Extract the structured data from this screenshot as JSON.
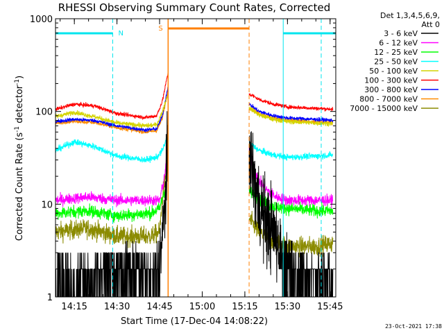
{
  "chart_data": {
    "type": "line",
    "title": "RHESSI Observing Summary Count Rates, Corrected",
    "xlabel": "Start Time (17-Dec-04 14:08:22)",
    "ylabel": "Corrected Count Rate (s",
    "ylabel_sup": "-1",
    "ylabel_tail": " detector",
    "ylabel_sup2": "-1",
    "ylabel_end": ")",
    "y_scale": "log",
    "ylim": [
      1,
      1000
    ],
    "xlim": [
      "14:08:22",
      "15:47:00"
    ],
    "x_ticks": [
      "14:15",
      "14:30",
      "14:45",
      "15:00",
      "15:15",
      "15:30",
      "15:45"
    ],
    "y_ticks": [
      "1",
      "10",
      "100",
      "1000"
    ],
    "legend_header": [
      "Det 1,3,4,5,6,9,",
      "Att 0"
    ],
    "legend_position": "right",
    "flag_labels": {
      "night": "N",
      "saa": "S"
    },
    "flags": {
      "night": [
        [
          "14:08:22",
          "14:28:30"
        ],
        [
          "15:28:30",
          "15:47:00"
        ]
      ],
      "saa": [
        [
          "14:48:00",
          "15:16:30"
        ]
      ]
    },
    "gap": [
      "14:48:00",
      "15:16:30"
    ],
    "series": [
      {
        "name": "3 - 6 keV",
        "color": "#000000",
        "noise": 0.55,
        "points": [
          [
            "14:08:22",
            1.3
          ],
          [
            "14:20",
            1.6
          ],
          [
            "14:35",
            1.8
          ],
          [
            "14:42",
            1.6
          ],
          [
            "14:44",
            1.8
          ],
          [
            "14:46",
            4
          ],
          [
            "14:47:50",
            30
          ],
          [
            "15:16:30",
            42
          ],
          [
            "15:18",
            20
          ],
          [
            "15:20",
            10
          ],
          [
            "15:22",
            7
          ],
          [
            "15:25",
            5
          ],
          [
            "15:28",
            3
          ],
          [
            "15:32",
            1.8
          ],
          [
            "15:40",
            1.5
          ],
          [
            "15:46",
            1.5
          ]
        ]
      },
      {
        "name": "6 - 12 keV",
        "color": "#ff00ff",
        "noise": 0.07,
        "points": [
          [
            "14:08:22",
            11
          ],
          [
            "14:20",
            12
          ],
          [
            "14:30",
            11
          ],
          [
            "14:42",
            11
          ],
          [
            "14:45",
            11
          ],
          [
            "14:46:30",
            18
          ],
          [
            "14:47:50",
            38
          ],
          [
            "15:16:30",
            40
          ],
          [
            "15:18",
            25
          ],
          [
            "15:20",
            18
          ],
          [
            "15:23",
            14
          ],
          [
            "15:26",
            12
          ],
          [
            "15:30",
            11
          ],
          [
            "15:40",
            11
          ],
          [
            "15:46",
            11
          ]
        ]
      },
      {
        "name": "12 - 25 keV",
        "color": "#00ff00",
        "noise": 0.08,
        "points": [
          [
            "14:08:22",
            8
          ],
          [
            "14:20",
            8.5
          ],
          [
            "14:30",
            7.5
          ],
          [
            "14:42",
            8
          ],
          [
            "14:45",
            9
          ],
          [
            "14:47",
            15
          ],
          [
            "14:47:50",
            25
          ],
          [
            "15:16:30",
            14
          ],
          [
            "15:20",
            11
          ],
          [
            "15:25",
            9.5
          ],
          [
            "15:30",
            9
          ],
          [
            "15:40",
            8.5
          ],
          [
            "15:46",
            8.5
          ]
        ]
      },
      {
        "name": "25 - 50 keV",
        "color": "#00ffff",
        "noise": 0.04,
        "points": [
          [
            "14:08:22",
            38
          ],
          [
            "14:15",
            47
          ],
          [
            "14:22",
            42
          ],
          [
            "14:30",
            33
          ],
          [
            "14:40",
            30
          ],
          [
            "14:44",
            32
          ],
          [
            "14:46",
            38
          ],
          [
            "14:47:50",
            55
          ],
          [
            "15:16:30",
            46
          ],
          [
            "15:20",
            38
          ],
          [
            "15:25",
            34
          ],
          [
            "15:30",
            32
          ],
          [
            "15:40",
            33
          ],
          [
            "15:46",
            34
          ]
        ]
      },
      {
        "name": "50 - 100 keV",
        "color": "#d4d400",
        "noise": 0.03,
        "points": [
          [
            "14:08:22",
            88
          ],
          [
            "14:15",
            98
          ],
          [
            "14:22",
            88
          ],
          [
            "14:30",
            75
          ],
          [
            "14:40",
            70
          ],
          [
            "14:44",
            72
          ],
          [
            "14:46",
            100
          ],
          [
            "14:47:50",
            150
          ],
          [
            "15:16:30",
            110
          ],
          [
            "15:20",
            92
          ],
          [
            "15:25",
            82
          ],
          [
            "15:30",
            78
          ],
          [
            "15:40",
            75
          ],
          [
            "15:46",
            74
          ]
        ]
      },
      {
        "name": "100 - 300 keV",
        "color": "#ff0000",
        "noise": 0.025,
        "points": [
          [
            "14:08:22",
            105
          ],
          [
            "14:15",
            120
          ],
          [
            "14:22",
            115
          ],
          [
            "14:30",
            95
          ],
          [
            "14:40",
            86
          ],
          [
            "14:44",
            90
          ],
          [
            "14:46",
            130
          ],
          [
            "14:47:50",
            250
          ],
          [
            "15:16:30",
            155
          ],
          [
            "15:20",
            135
          ],
          [
            "15:25",
            120
          ],
          [
            "15:30",
            112
          ],
          [
            "15:40",
            108
          ],
          [
            "15:46",
            106
          ]
        ]
      },
      {
        "name": "300 - 800 keV",
        "color": "#0000ff",
        "noise": 0.025,
        "points": [
          [
            "14:08:22",
            78
          ],
          [
            "14:15",
            82
          ],
          [
            "14:22",
            80
          ],
          [
            "14:30",
            70
          ],
          [
            "14:40",
            63
          ],
          [
            "14:44",
            65
          ],
          [
            "14:46",
            90
          ],
          [
            "14:47:50",
            180
          ],
          [
            "15:16:30",
            120
          ],
          [
            "15:20",
            100
          ],
          [
            "15:25",
            90
          ],
          [
            "15:30",
            85
          ],
          [
            "15:40",
            82
          ],
          [
            "15:46",
            80
          ]
        ]
      },
      {
        "name": "800 - 7000 keV",
        "color": "#ff8c00",
        "noise": 0.025,
        "points": [
          [
            "14:08:22",
            75
          ],
          [
            "14:15",
            78
          ],
          [
            "14:22",
            76
          ],
          [
            "14:30",
            67
          ],
          [
            "14:40",
            60
          ],
          [
            "14:44",
            62
          ],
          [
            "14:46",
            85
          ],
          [
            "14:47:50",
            160
          ],
          [
            "15:16:30",
            110
          ],
          [
            "15:20",
            95
          ],
          [
            "15:25",
            85
          ],
          [
            "15:30",
            80
          ],
          [
            "15:40",
            77
          ],
          [
            "15:46",
            76
          ]
        ]
      },
      {
        "name": "7000 - 15000 keV",
        "color": "#8b8b00",
        "noise": 0.12,
        "points": [
          [
            "14:08:22",
            5
          ],
          [
            "14:20",
            5.5
          ],
          [
            "14:30",
            4.5
          ],
          [
            "14:42",
            4.5
          ],
          [
            "14:45",
            5
          ],
          [
            "14:46",
            12
          ],
          [
            "14:47:50",
            28
          ],
          [
            "15:16:30",
            7
          ],
          [
            "15:20",
            5
          ],
          [
            "15:25",
            4
          ],
          [
            "15:30",
            3.5
          ],
          [
            "15:40",
            3.5
          ],
          [
            "15:46",
            3.8
          ]
        ]
      }
    ]
  },
  "footer": {
    "timestamp": "23-Oct-2021 17:38"
  }
}
